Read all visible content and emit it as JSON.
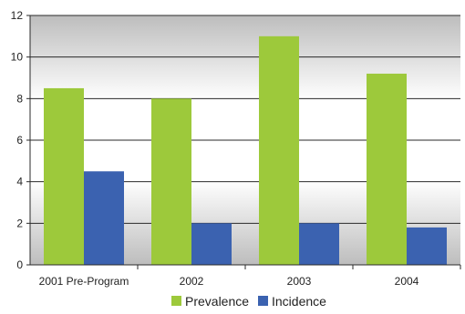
{
  "chart_data": {
    "type": "bar",
    "categories": [
      "2001 Pre-Program",
      "2002",
      "2003",
      "2004"
    ],
    "series": [
      {
        "name": "Prevalence",
        "values": [
          8.5,
          8.0,
          11.0,
          9.2
        ],
        "color": "#9dc93b"
      },
      {
        "name": "Incidence",
        "values": [
          4.5,
          2.0,
          2.0,
          1.8
        ],
        "color": "#3b62b0"
      }
    ],
    "ylim": [
      0,
      12
    ],
    "yticks": [
      0,
      2,
      4,
      6,
      8,
      10,
      12
    ],
    "grid": true,
    "legend_position": "bottom-center",
    "title": "",
    "xlabel": "",
    "ylabel": ""
  }
}
